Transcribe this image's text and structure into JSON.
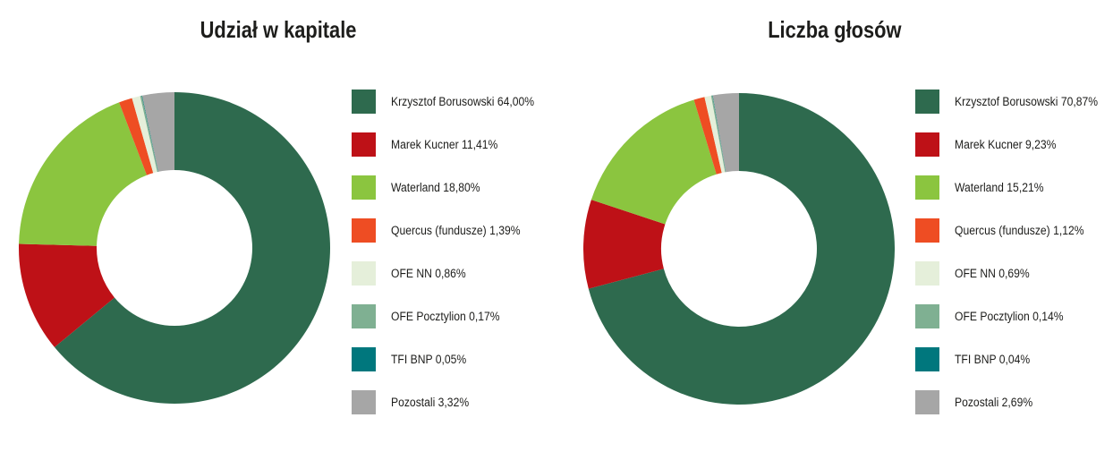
{
  "chart_data": [
    {
      "type": "pie",
      "subtype": "donut",
      "title": "Udział w kapitale",
      "legend_position": "right",
      "start_angle": "top",
      "direction": "clockwise",
      "inner_radius_ratio": 0.5,
      "categories": [
        "Krzysztof Borusowski",
        "Marek Kucner",
        "Waterland",
        "Quercus (fundusze)",
        "OFE NN",
        "OFE Pocztylion",
        "TFI BNP",
        "Pozostali"
      ],
      "values": [
        64.0,
        11.41,
        18.8,
        1.39,
        0.86,
        0.17,
        0.05,
        3.32
      ],
      "legend_labels": [
        "Krzysztof Borusowski 64,00%",
        "Marek Kucner 11,41%",
        "Waterland 18,80%",
        "Quercus (fundusze) 1,39%",
        "OFE NN 0,86%",
        "OFE Pocztylion 0,17%",
        "TFI BNP 0,05%",
        "Pozostali 3,32%"
      ],
      "colors": [
        "#2e6a4e",
        "#be1117",
        "#8bc53f",
        "#ee4d23",
        "#e5efda",
        "#7fb092",
        "#00777d",
        "#a6a6a6"
      ]
    },
    {
      "type": "pie",
      "subtype": "donut",
      "title": "Liczba głosów",
      "legend_position": "right",
      "start_angle": "top",
      "direction": "clockwise",
      "inner_radius_ratio": 0.5,
      "categories": [
        "Krzysztof Borusowski",
        "Marek Kucner",
        "Waterland",
        "Quercus (fundusze)",
        "OFE NN",
        "OFE Pocztylion",
        "TFI BNP",
        "Pozostali"
      ],
      "values": [
        70.87,
        9.23,
        15.21,
        1.12,
        0.69,
        0.14,
        0.04,
        2.69
      ],
      "legend_labels": [
        "Krzysztof Borusowski 70,87%",
        "Marek Kucner 9,23%",
        "Waterland 15,21%",
        "Quercus (fundusze) 1,12%",
        "OFE NN 0,69%",
        "OFE Pocztylion 0,14%",
        "TFI BNP 0,04%",
        "Pozostali 2,69%"
      ],
      "colors": [
        "#2e6a4e",
        "#be1117",
        "#8bc53f",
        "#ee4d23",
        "#e5efda",
        "#7fb092",
        "#00777d",
        "#a6a6a6"
      ]
    }
  ]
}
